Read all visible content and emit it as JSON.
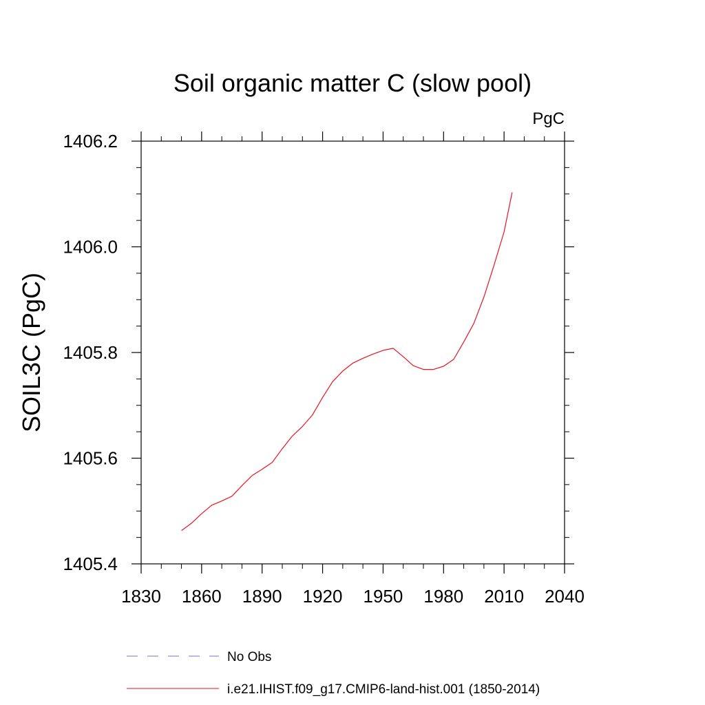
{
  "chart_data": {
    "type": "line",
    "title": "Soil organic matter C (slow pool)",
    "units_label": "PgC",
    "xlabel": "",
    "ylabel": "SOIL3C  (PgC)",
    "xlim": [
      1830,
      2040
    ],
    "ylim": [
      1405.4,
      1406.2
    ],
    "x_ticks": [
      "1830",
      "1860",
      "1890",
      "1920",
      "1950",
      "1980",
      "2010",
      "2040"
    ],
    "y_ticks": [
      "1405.4",
      "1405.6",
      "1405.8",
      "1406.0",
      "1406.2"
    ],
    "x_minor_step": 10,
    "y_minor_step": 0.05,
    "grid": false,
    "legend_position": "bottom",
    "legend": [
      {
        "label": "No Obs",
        "color": "#7b6fd0",
        "style": "dashed"
      },
      {
        "label": "i.e21.IHIST.f09_g17.CMIP6-land-hist.001 (1850-2014)",
        "color": "#e8141e",
        "style": "solid"
      }
    ],
    "series": [
      {
        "name": "i.e21.IHIST.f09_g17.CMIP6-land-hist.001 (1850-2014)",
        "color": "#e8141e",
        "x": [
          1850,
          1855,
          1860,
          1865,
          1870,
          1875,
          1880,
          1885,
          1890,
          1895,
          1900,
          1905,
          1910,
          1915,
          1920,
          1925,
          1930,
          1935,
          1940,
          1945,
          1950,
          1955,
          1960,
          1965,
          1970,
          1975,
          1980,
          1985,
          1990,
          1995,
          2000,
          2005,
          2010,
          2014
        ],
        "y": [
          1405.463,
          1405.477,
          1405.495,
          1405.511,
          1405.519,
          1405.528,
          1405.548,
          1405.567,
          1405.579,
          1405.592,
          1405.618,
          1405.642,
          1405.66,
          1405.682,
          1405.715,
          1405.745,
          1405.765,
          1405.78,
          1405.789,
          1405.797,
          1405.804,
          1405.808,
          1405.792,
          1405.775,
          1405.768,
          1405.768,
          1405.774,
          1405.787,
          1405.82,
          1405.855,
          1405.905,
          1405.965,
          1406.028,
          1406.103
        ]
      }
    ]
  }
}
